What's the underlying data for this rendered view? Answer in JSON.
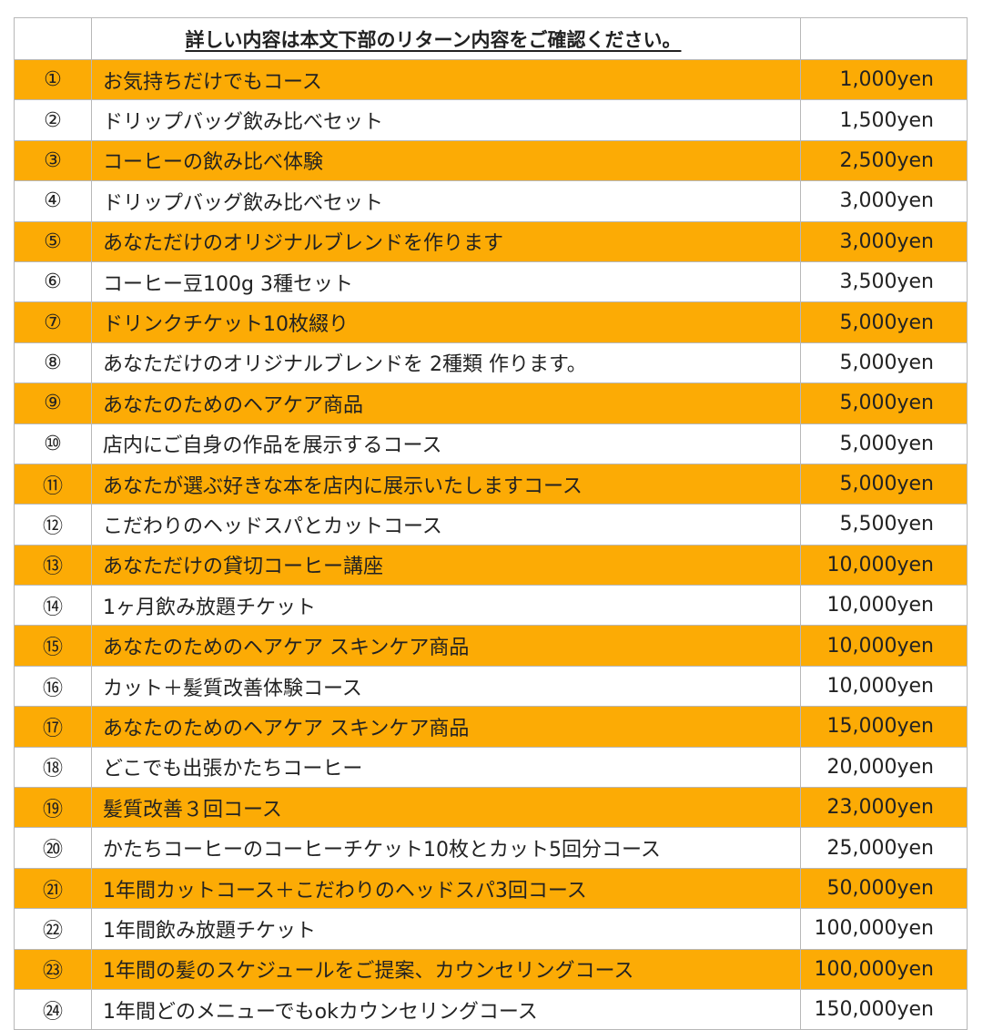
{
  "header": {
    "title": "詳しい内容は本文下部のリターン内容をご確認ください。"
  },
  "colors": {
    "highlight": "#fcab05",
    "border": "#b8b8b8"
  },
  "rows": [
    {
      "num": "①",
      "name": "お気持ちだけでもコース",
      "price": "1,000yen",
      "highlight": true
    },
    {
      "num": "②",
      "name": "ドリップバッグ飲み比べセット",
      "price": "1,500yen",
      "highlight": false
    },
    {
      "num": "③",
      "name": "コーヒーの飲み比べ体験",
      "price": "2,500yen",
      "highlight": true
    },
    {
      "num": "④",
      "name": "ドリップバッグ飲み比べセット",
      "price": "3,000yen",
      "highlight": false
    },
    {
      "num": "⑤",
      "name": "あなただけのオリジナルブレンドを作ります",
      "price": "3,000yen",
      "highlight": true
    },
    {
      "num": "⑥",
      "name": "コーヒー豆100g 3種セット",
      "price": "3,500yen",
      "highlight": false
    },
    {
      "num": "⑦",
      "name": "ドリンクチケット10枚綴り",
      "price": "5,000yen",
      "highlight": true
    },
    {
      "num": "⑧",
      "name": "あなただけのオリジナルブレンドを 2種類 作ります。",
      "price": "5,000yen",
      "highlight": false
    },
    {
      "num": "⑨",
      "name": "あなたのためのヘアケア商品",
      "price": "5,000yen",
      "highlight": true
    },
    {
      "num": "⑩",
      "name": "店内にご自身の作品を展示するコース",
      "price": "5,000yen",
      "highlight": false
    },
    {
      "num": "⑪",
      "name": "あなたが選ぶ好きな本を店内に展示いたしますコース",
      "price": "5,000yen",
      "highlight": true
    },
    {
      "num": "⑫",
      "name": "こだわりのヘッドスパとカットコース",
      "price": "5,500yen",
      "highlight": false
    },
    {
      "num": "⑬",
      "name": "あなただけの貸切コーヒー講座",
      "price": "10,000yen",
      "highlight": true
    },
    {
      "num": "⑭",
      "name": "1ヶ月飲み放題チケット",
      "price": "10,000yen",
      "highlight": false
    },
    {
      "num": "⑮",
      "name": "あなたのためのヘアケア スキンケア商品",
      "price": "10,000yen",
      "highlight": true
    },
    {
      "num": "⑯",
      "name": "カット＋髪質改善体験コース",
      "price": "10,000yen",
      "highlight": false
    },
    {
      "num": "⑰",
      "name": "あなたのためのヘアケア スキンケア商品",
      "price": "15,000yen",
      "highlight": true
    },
    {
      "num": "⑱",
      "name": "どこでも出張かたちコーヒー",
      "price": "20,000yen",
      "highlight": false
    },
    {
      "num": "⑲",
      "name": "髪質改善３回コース",
      "price": "23,000yen",
      "highlight": true
    },
    {
      "num": "⑳",
      "name": "かたちコーヒーのコーヒーチケット10枚とカット5回分コース",
      "price": "25,000yen",
      "highlight": false
    },
    {
      "num": "㉑",
      "name": "1年間カットコース＋こだわりのヘッドスパ3回コース",
      "price": "50,000yen",
      "highlight": true
    },
    {
      "num": "㉒",
      "name": "1年間飲み放題チケット",
      "price": "100,000yen",
      "highlight": false
    },
    {
      "num": "㉓",
      "name": "1年間の髪のスケジュールをご提案、カウンセリングコース",
      "price": "100,000yen",
      "highlight": true
    },
    {
      "num": "㉔",
      "name": "1年間どのメニューでもokカウンセリングコース",
      "price": "150,000yen",
      "highlight": false
    }
  ]
}
